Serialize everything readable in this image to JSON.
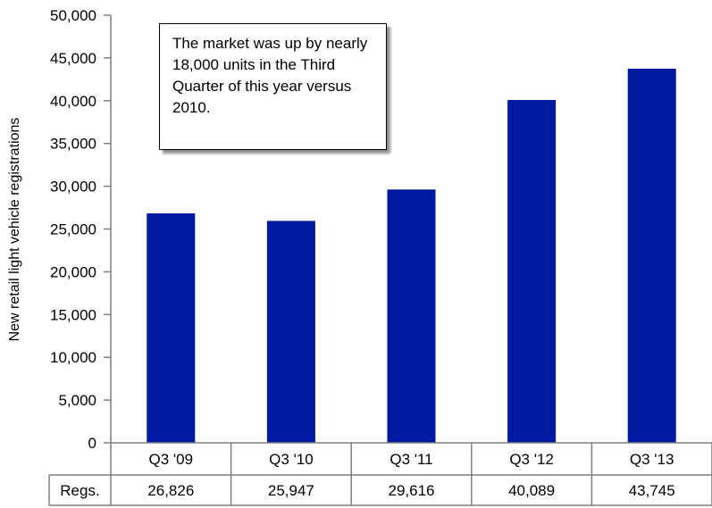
{
  "chart_data": {
    "type": "bar",
    "title": "",
    "xlabel": "",
    "ylabel": "New retail light vehicle registrations",
    "categories": [
      "Q3 '09",
      "Q3 '10",
      "Q3 '11",
      "Q3 '12",
      "Q3 '13"
    ],
    "series": [
      {
        "name": "Regs.",
        "values": [
          26826,
          25947,
          29616,
          40089,
          43745
        ]
      }
    ],
    "value_labels": [
      "26,826",
      "25,947",
      "29,616",
      "40,089",
      "43,745"
    ],
    "y_ticks": [
      "0",
      "5,000",
      "10,000",
      "15,000",
      "20,000",
      "25,000",
      "30,000",
      "35,000",
      "40,000",
      "45,000",
      "50,000"
    ],
    "ylim": [
      0,
      50000
    ],
    "grid": false,
    "bar_color": "#0019a0",
    "data_table": true,
    "annotation": "The market was up by nearly 18,000 units in the Third Quarter of this year versus 2010."
  }
}
